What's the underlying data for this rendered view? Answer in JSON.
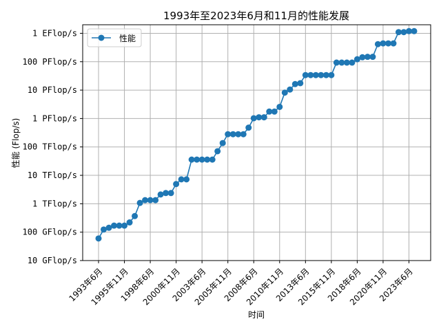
{
  "chart_data": {
    "type": "line",
    "title": "1993年至2023年6月和11月的性能发展",
    "xlabel": "时间",
    "ylabel": "性能 (Flop/s)",
    "yscale": "log",
    "ylim_gflops": [
      10,
      2000000000
    ],
    "grid": true,
    "legend_position": "top-left",
    "color": "#1f77b4",
    "y_ticks": [
      {
        "value_gflops": 10,
        "label": "10 GFlop/s"
      },
      {
        "value_gflops": 100,
        "label": "100 GFlop/s"
      },
      {
        "value_gflops": 1000,
        "label": "1 TFlop/s"
      },
      {
        "value_gflops": 10000,
        "label": "10 TFlop/s"
      },
      {
        "value_gflops": 100000,
        "label": "100 TFlop/s"
      },
      {
        "value_gflops": 1000000,
        "label": "1 PFlop/s"
      },
      {
        "value_gflops": 10000000,
        "label": "10 PFlop/s"
      },
      {
        "value_gflops": 100000000,
        "label": "100 PFlop/s"
      },
      {
        "value_gflops": 1000000000,
        "label": "1 EFlop/s"
      }
    ],
    "x_ticks": [
      {
        "index": 0,
        "label": "1993年6月"
      },
      {
        "index": 5,
        "label": "1995年11月"
      },
      {
        "index": 10,
        "label": "1998年6月"
      },
      {
        "index": 15,
        "label": "2000年11月"
      },
      {
        "index": 20,
        "label": "2003年6月"
      },
      {
        "index": 25,
        "label": "2005年11月"
      },
      {
        "index": 30,
        "label": "2008年6月"
      },
      {
        "index": 35,
        "label": "2010年11月"
      },
      {
        "index": 40,
        "label": "2013年6月"
      },
      {
        "index": 45,
        "label": "2015年11月"
      },
      {
        "index": 50,
        "label": "2018年6月"
      },
      {
        "index": 55,
        "label": "2020年11月"
      },
      {
        "index": 60,
        "label": "2023年6月"
      }
    ],
    "series": [
      {
        "name": "性能",
        "unit": "GFlop/s",
        "values": [
          60,
          124,
          143,
          170,
          170,
          170,
          220,
          368,
          1068,
          1338,
          1338,
          1338,
          2121,
          2379,
          2379,
          4938,
          7226,
          7226,
          35860,
          35860,
          35860,
          35860,
          35860,
          70720,
          136800,
          280600,
          280600,
          280600,
          280600,
          478200,
          1026000,
          1105000,
          1105000,
          1759000,
          1759000,
          2566000,
          8162000,
          10510000,
          16320000,
          17590000,
          33860000,
          33860000,
          33860000,
          33860000,
          33860000,
          33860000,
          93010000,
          93010000,
          93010000,
          93010000,
          122300000,
          143500000,
          148600000,
          148600000,
          415500000,
          442000000,
          442000000,
          442000000,
          1102000000,
          1102000000,
          1194000000,
          1194000000
        ]
      }
    ]
  }
}
